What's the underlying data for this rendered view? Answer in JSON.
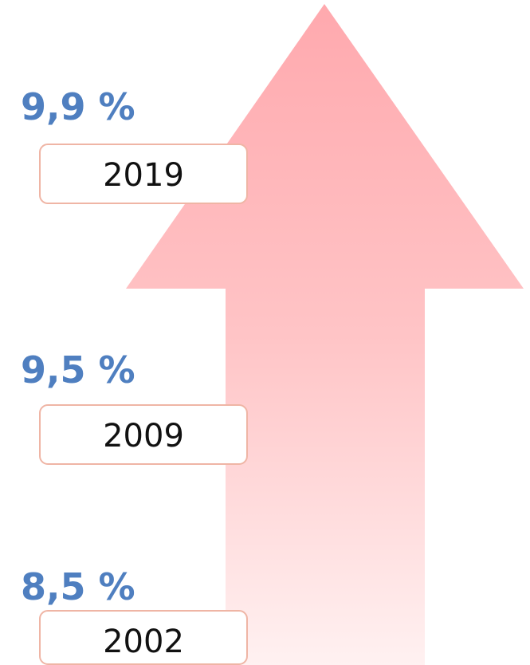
{
  "items": [
    {
      "value": "9,9 %",
      "year": "2019"
    },
    {
      "value": "9,5 %",
      "year": "2009"
    },
    {
      "value": "8,5 %",
      "year": "2002"
    }
  ]
}
